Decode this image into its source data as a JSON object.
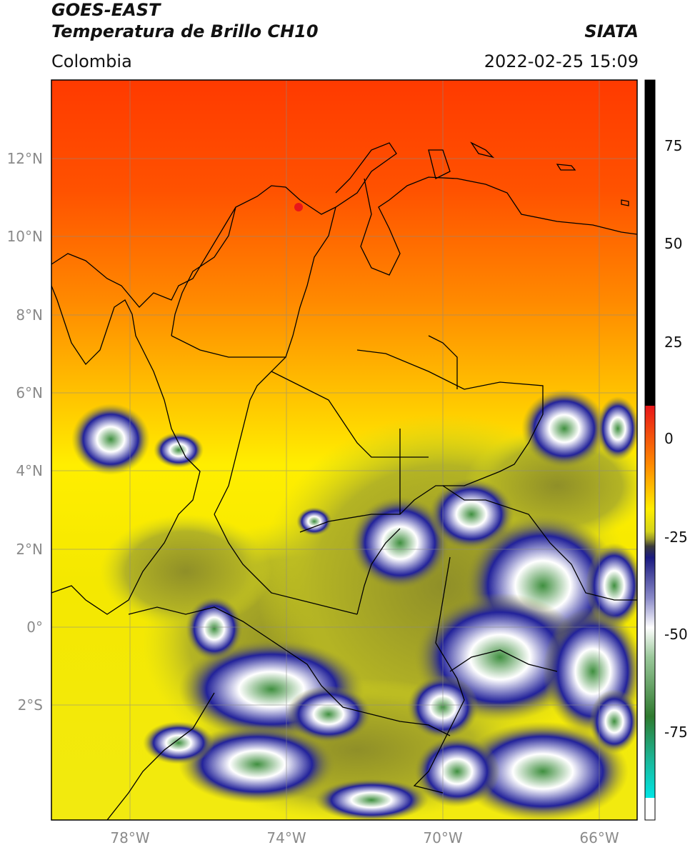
{
  "header": {
    "title_line1": "GOES-EAST",
    "title_line2": "Temperatura de Brillo CH10",
    "region": "Colombia",
    "brand": "SIATA",
    "timestamp": "2022-02-25 15:09"
  },
  "map": {
    "lat_labels": [
      "12°N",
      "10°N",
      "8°N",
      "6°N",
      "4°N",
      "2°N",
      "0°",
      "2°S"
    ],
    "lon_labels": [
      "78°W",
      "74°W",
      "70°W",
      "66°W"
    ],
    "gridlines": true
  },
  "colorbar": {
    "ticks": [
      "75",
      "50",
      "25",
      "0",
      "-25",
      "-50",
      "-75"
    ],
    "range": [
      -95,
      90
    ],
    "colors": {
      "black": "#000000",
      "red": "#e8161a",
      "orange": "#ff8a00",
      "yellow": "#ffee00",
      "olive": "#9a9a2a",
      "navy": "#1a1a80",
      "white": "#ffffff",
      "green": "#3a8a3a",
      "teal": "#1ab89a",
      "cyan": "#00e5e5"
    }
  }
}
